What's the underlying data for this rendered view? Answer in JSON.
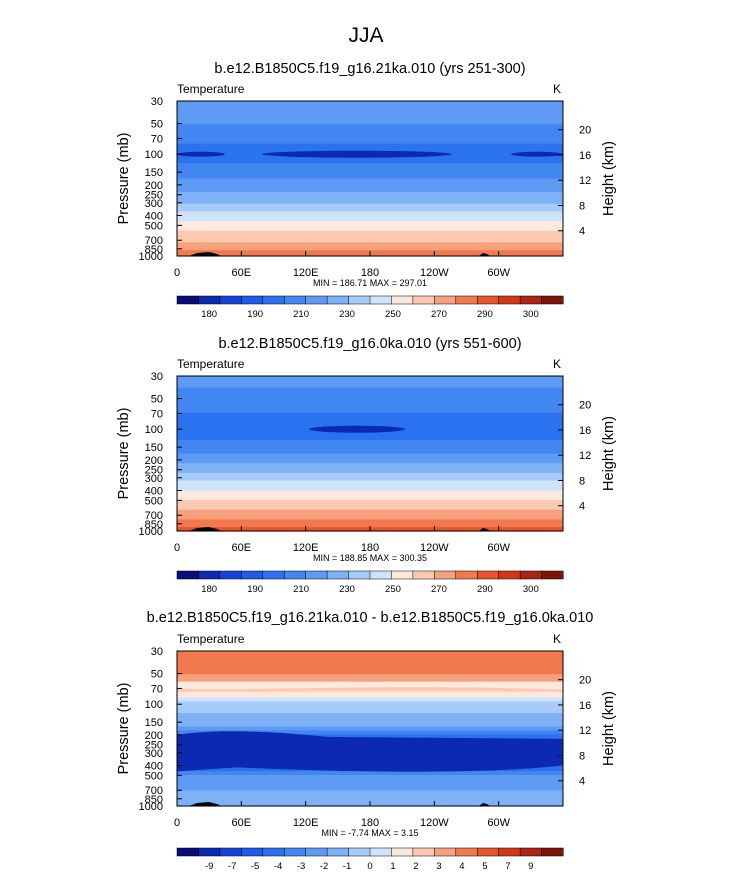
{
  "figure_title": "JJA",
  "palette": {
    "temp": [
      "#080d7a",
      "#0c2ab1",
      "#1544d4",
      "#1d5be8",
      "#2a72f0",
      "#4286f2",
      "#5f9af4",
      "#7fb1f6",
      "#a6cbf8",
      "#cfe3fa",
      "#fbe8de",
      "#fbc9af",
      "#f7a07c",
      "#f2784e",
      "#e8532b",
      "#d23816",
      "#ac2510",
      "#7c1407"
    ],
    "diff": [
      "#080d7a",
      "#0c2ab1",
      "#1544d4",
      "#1d5be8",
      "#2a72f0",
      "#4286f2",
      "#5f9af4",
      "#7fb1f6",
      "#a6cbf8",
      "#cfe3fa",
      "#fbe8de",
      "#fbc9af",
      "#f7a07c",
      "#f2784e",
      "#e8532b",
      "#d23816",
      "#ac2510",
      "#7c1407"
    ]
  },
  "chart_data": [
    {
      "type": "heatmap",
      "title": "b.e12.B1850C5.f19_g16.21ka.010 (yrs 251-300)",
      "left_label": "Temperature",
      "right_label": "K",
      "ylabel": "Pressure (mb)",
      "y2label": "Height (km)",
      "x_ticks": [
        "0",
        "60E",
        "120E",
        "180",
        "120W",
        "60W"
      ],
      "y_ticks": [
        "30",
        "50",
        "70",
        "100",
        "150",
        "200",
        "250",
        "300",
        "400",
        "500",
        "700",
        "850",
        "1000"
      ],
      "y2_ticks": [
        "20",
        "16",
        "12",
        "8",
        "4"
      ],
      "stats": "MIN = 186.71  MAX = 297.01",
      "min": 186.71,
      "max": 297.01,
      "colorbar_labels": [
        "180",
        "190",
        "210",
        "230",
        "250",
        "270",
        "290",
        "300"
      ],
      "profile": [
        {
          "p": 30,
          "v": 216
        },
        {
          "p": 50,
          "v": 210
        },
        {
          "p": 70,
          "v": 202
        },
        {
          "p": 100,
          "v": 195
        },
        {
          "p": 150,
          "v": 205
        },
        {
          "p": 200,
          "v": 214
        },
        {
          "p": 250,
          "v": 222
        },
        {
          "p": 300,
          "v": 230
        },
        {
          "p": 400,
          "v": 244
        },
        {
          "p": 500,
          "v": 254
        },
        {
          "p": 700,
          "v": 268
        },
        {
          "p": 850,
          "v": 278
        },
        {
          "p": 1000,
          "v": 286
        }
      ]
    },
    {
      "type": "heatmap",
      "title": "b.e12.B1850C5.f19_g16.0ka.010 (yrs 551-600)",
      "left_label": "Temperature",
      "right_label": "K",
      "ylabel": "Pressure (mb)",
      "y2label": "Height (km)",
      "x_ticks": [
        "0",
        "60E",
        "120E",
        "180",
        "120W",
        "60W"
      ],
      "y_ticks": [
        "30",
        "50",
        "70",
        "100",
        "150",
        "200",
        "250",
        "300",
        "400",
        "500",
        "700",
        "850",
        "1000"
      ],
      "y2_ticks": [
        "20",
        "16",
        "12",
        "8",
        "4"
      ],
      "stats": "MIN = 188.85  MAX = 300.35",
      "min": 188.85,
      "max": 300.35,
      "colorbar_labels": [
        "180",
        "190",
        "210",
        "230",
        "250",
        "270",
        "290",
        "300"
      ],
      "profile": [
        {
          "p": 30,
          "v": 213
        },
        {
          "p": 50,
          "v": 207
        },
        {
          "p": 70,
          "v": 200
        },
        {
          "p": 100,
          "v": 194
        },
        {
          "p": 150,
          "v": 204
        },
        {
          "p": 200,
          "v": 216
        },
        {
          "p": 250,
          "v": 226
        },
        {
          "p": 300,
          "v": 236
        },
        {
          "p": 400,
          "v": 250
        },
        {
          "p": 500,
          "v": 261
        },
        {
          "p": 700,
          "v": 276
        },
        {
          "p": 850,
          "v": 286
        },
        {
          "p": 1000,
          "v": 294
        }
      ]
    },
    {
      "type": "heatmap",
      "title": "b.e12.B1850C5.f19_g16.21ka.010 - b.e12.B1850C5.f19_g16.0ka.010",
      "left_label": "Temperature",
      "right_label": "K",
      "ylabel": "Pressure (mb)",
      "y2label": "Height (km)",
      "x_ticks": [
        "0",
        "60E",
        "120E",
        "180",
        "120W",
        "60W"
      ],
      "y_ticks": [
        "30",
        "50",
        "70",
        "100",
        "150",
        "200",
        "250",
        "300",
        "400",
        "500",
        "700",
        "850",
        "1000"
      ],
      "y2_ticks": [
        "20",
        "16",
        "12",
        "8",
        "4"
      ],
      "stats": "MIN = -7.74  MAX =  3.15",
      "min": -7.74,
      "max": 3.15,
      "colorbar_labels": [
        "-9",
        "-7",
        "-5",
        "-4",
        "-3",
        "-2",
        "-1",
        "0",
        "1",
        "2",
        "3",
        "4",
        "5",
        "7",
        "9"
      ],
      "profile": [
        {
          "p": 30,
          "v": 2.5
        },
        {
          "p": 50,
          "v": 2.0
        },
        {
          "p": 70,
          "v": 0.6
        },
        {
          "p": 100,
          "v": -2.5
        },
        {
          "p": 150,
          "v": -3.5
        },
        {
          "p": 200,
          "v": -5.0
        },
        {
          "p": 250,
          "v": -6.2
        },
        {
          "p": 300,
          "v": -6.3
        },
        {
          "p": 400,
          "v": -6.0
        },
        {
          "p": 500,
          "v": -4.5
        },
        {
          "p": 700,
          "v": -4.0
        },
        {
          "p": 850,
          "v": -3.6
        },
        {
          "p": 1000,
          "v": -3.2
        }
      ]
    }
  ]
}
